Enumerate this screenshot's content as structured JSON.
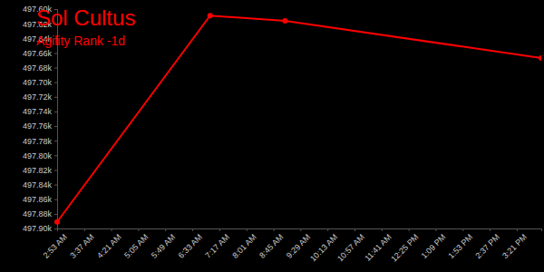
{
  "chart_data": {
    "type": "line",
    "title": "Sol Cultus",
    "subtitle": "Agility Rank -1d",
    "x": [
      173,
      422,
      544,
      961
    ],
    "values": [
      497891,
      497609,
      497616,
      497667
    ],
    "color": "#ff0000",
    "marker": "circle",
    "xlim": [
      173,
      961
    ],
    "xticks": [
      {
        "value": 173,
        "label": "2:53 AM"
      },
      {
        "value": 217,
        "label": "3:37 AM"
      },
      {
        "value": 261,
        "label": "4:21 AM"
      },
      {
        "value": 305,
        "label": "5:05 AM"
      },
      {
        "value": 349,
        "label": "5:49 AM"
      },
      {
        "value": 393,
        "label": "6:33 AM"
      },
      {
        "value": 437,
        "label": "7:17 AM"
      },
      {
        "value": 481,
        "label": "8:01 AM"
      },
      {
        "value": 525,
        "label": "8:45 AM"
      },
      {
        "value": 569,
        "label": "9:29 AM"
      },
      {
        "value": 613,
        "label": "10:13 AM"
      },
      {
        "value": 657,
        "label": "10:57 AM"
      },
      {
        "value": 701,
        "label": "11:41 AM"
      },
      {
        "value": 745,
        "label": "12:25 PM"
      },
      {
        "value": 789,
        "label": "1:09 PM"
      },
      {
        "value": 833,
        "label": "1:53 PM"
      },
      {
        "value": 877,
        "label": "2:37 PM"
      },
      {
        "value": 921,
        "label": "3:21 PM"
      }
    ],
    "ylim": [
      497900,
      497600
    ],
    "yticks": [
      {
        "value": 497600,
        "label": "497.60k"
      },
      {
        "value": 497620,
        "label": "497.62k"
      },
      {
        "value": 497640,
        "label": "497.64k"
      },
      {
        "value": 497660,
        "label": "497.66k"
      },
      {
        "value": 497680,
        "label": "497.68k"
      },
      {
        "value": 497700,
        "label": "497.70k"
      },
      {
        "value": 497720,
        "label": "497.72k"
      },
      {
        "value": 497740,
        "label": "497.74k"
      },
      {
        "value": 497760,
        "label": "497.76k"
      },
      {
        "value": 497780,
        "label": "497.78k"
      },
      {
        "value": 497800,
        "label": "497.80k"
      },
      {
        "value": 497820,
        "label": "497.82k"
      },
      {
        "value": 497840,
        "label": "497.84k"
      },
      {
        "value": 497860,
        "label": "497.86k"
      },
      {
        "value": 497880,
        "label": "497.88k"
      },
      {
        "value": 497900,
        "label": "497.90k"
      }
    ],
    "grid": false
  }
}
